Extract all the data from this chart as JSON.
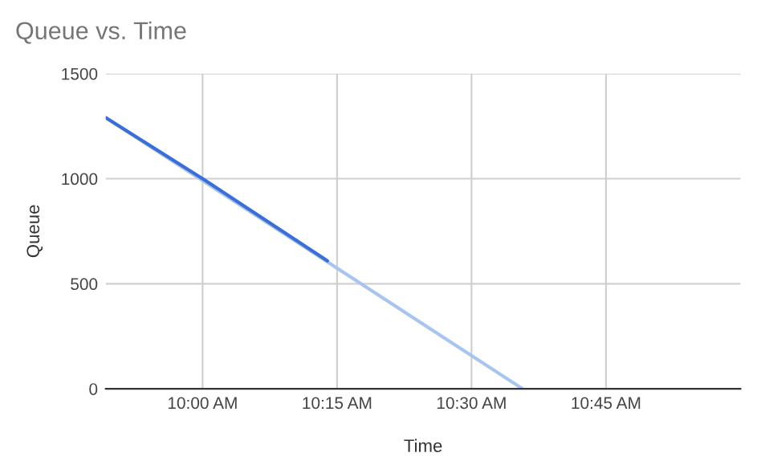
{
  "chart_data": {
    "type": "line",
    "title": "Queue vs. Time",
    "xlabel": "Time",
    "ylabel": "Queue",
    "xlim": [
      9.82,
      11.0
    ],
    "xticks": [
      {
        "value": 10,
        "label": "10:00 AM"
      },
      {
        "value": 10.25,
        "label": "10:15 AM"
      },
      {
        "value": 10.5,
        "label": "10:30 AM"
      },
      {
        "value": 10.75,
        "label": "10:45 AM"
      }
    ],
    "ylim": [
      0,
      1500
    ],
    "yticks": [
      0,
      500,
      1000,
      1500
    ],
    "grid": true,
    "marker": "none",
    "line_style": "solid",
    "series": [
      {
        "color": "#a8c4f0",
        "x": [
          9.82,
          10.595
        ],
        "values": [
          1290,
          0
        ]
      },
      {
        "color": "#3b6fd8",
        "x": [
          9.82,
          10.0,
          10.232
        ],
        "values": [
          1290,
          1000,
          609
        ]
      }
    ]
  }
}
